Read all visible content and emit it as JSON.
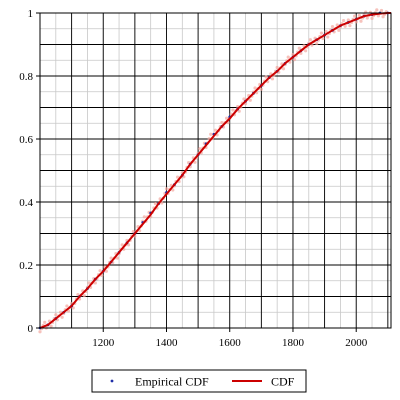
{
  "chart_data": {
    "type": "line",
    "title": "",
    "xlabel": "",
    "ylabel": "",
    "xlim": [
      1000,
      2110
    ],
    "ylim": [
      0,
      1
    ],
    "grid": true,
    "legend_position": "bottom",
    "x_ticks": [
      1200,
      1400,
      1600,
      1800,
      2000
    ],
    "x_tick_labels": [
      "1200",
      "1400",
      "1600",
      "1800",
      "2000"
    ],
    "y_ticks": [
      0,
      0.2,
      0.4,
      0.6,
      0.8,
      1
    ],
    "y_tick_labels": [
      "0",
      "0.2",
      "0.4",
      "0.6",
      "0.8",
      "1"
    ],
    "series": [
      {
        "name": "Empirical CDF",
        "kind": "points",
        "color": "#1f2fa8",
        "x": [
          1000,
          1025,
          1050,
          1075,
          1100,
          1125,
          1150,
          1175,
          1200,
          1225,
          1250,
          1275,
          1300,
          1325,
          1350,
          1375,
          1400,
          1425,
          1450,
          1475,
          1500,
          1525,
          1550,
          1575,
          1600,
          1625,
          1650,
          1675,
          1700,
          1725,
          1750,
          1775,
          1800,
          1825,
          1850,
          1875,
          1900,
          1925,
          1950,
          1975,
          2000,
          2025,
          2050,
          2075,
          2100
        ],
        "y": [
          0.0,
          0.01,
          0.03,
          0.05,
          0.07,
          0.1,
          0.125,
          0.155,
          0.18,
          0.21,
          0.24,
          0.27,
          0.3,
          0.335,
          0.365,
          0.395,
          0.43,
          0.455,
          0.485,
          0.52,
          0.55,
          0.585,
          0.615,
          0.64,
          0.67,
          0.695,
          0.72,
          0.745,
          0.77,
          0.795,
          0.815,
          0.84,
          0.86,
          0.88,
          0.9,
          0.915,
          0.93,
          0.945,
          0.96,
          0.97,
          0.98,
          0.99,
          0.995,
          1.0,
          1.0
        ]
      },
      {
        "name": "CDF",
        "kind": "line",
        "color": "#cc0000",
        "x": [
          1000,
          1025,
          1050,
          1075,
          1100,
          1125,
          1150,
          1175,
          1200,
          1225,
          1250,
          1275,
          1300,
          1325,
          1350,
          1375,
          1400,
          1425,
          1450,
          1475,
          1500,
          1525,
          1550,
          1575,
          1600,
          1625,
          1650,
          1675,
          1700,
          1725,
          1750,
          1775,
          1800,
          1825,
          1850,
          1875,
          1900,
          1925,
          1950,
          1975,
          2000,
          2025,
          2050,
          2075,
          2100,
          2110
        ],
        "y": [
          0.0,
          0.01,
          0.03,
          0.05,
          0.07,
          0.1,
          0.125,
          0.155,
          0.18,
          0.21,
          0.24,
          0.27,
          0.3,
          0.33,
          0.36,
          0.395,
          0.425,
          0.455,
          0.485,
          0.52,
          0.55,
          0.58,
          0.61,
          0.64,
          0.665,
          0.695,
          0.72,
          0.745,
          0.77,
          0.795,
          0.815,
          0.84,
          0.86,
          0.88,
          0.9,
          0.915,
          0.93,
          0.945,
          0.96,
          0.97,
          0.98,
          0.99,
          0.995,
          0.998,
          1.0,
          1.0
        ]
      }
    ]
  }
}
